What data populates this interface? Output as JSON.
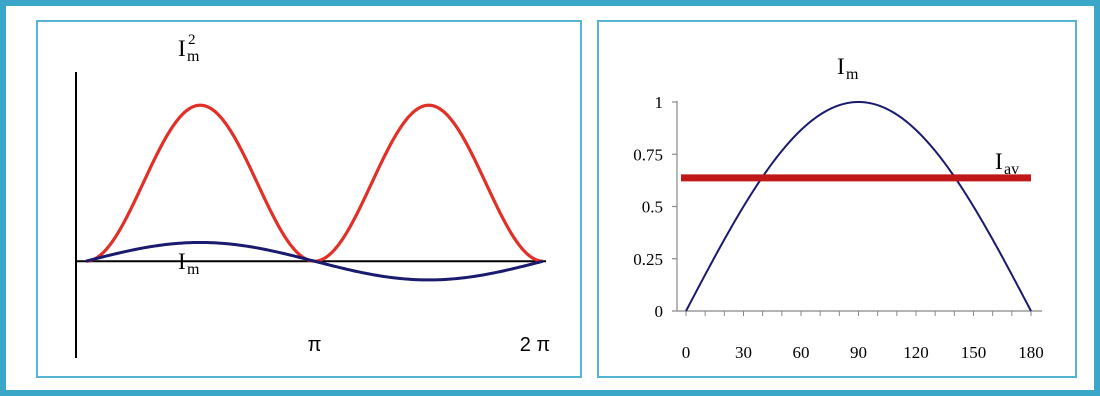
{
  "colors": {
    "frame": "#3aa6c8",
    "panel_border": "#55b3d4",
    "red": "#e03028",
    "dark_red": "#c01818",
    "blue": "#1a1a6e",
    "axis": "#000000"
  },
  "chart_data": [
    {
      "type": "line",
      "x_tick_labels": [
        "π",
        "2 π"
      ],
      "x_ticks": [
        3.14159,
        6.28318
      ],
      "xlim": [
        0,
        6.28318
      ],
      "ylim": [
        -0.3,
        1.2
      ],
      "series": [
        {
          "name": "I_m^2",
          "label_main": "I",
          "label_sub": "m",
          "label_sup": "2",
          "color": "#e03028",
          "function": "sin^2(x)"
        },
        {
          "name": "I_m",
          "label_main": "I",
          "label_sub": "m",
          "color": "#1a1a6e",
          "function": "0.12*sin(x)"
        }
      ]
    },
    {
      "type": "line",
      "x": [
        0,
        30,
        60,
        90,
        120,
        150,
        180
      ],
      "x_tick_labels": [
        "0",
        "30",
        "60",
        "90",
        "120",
        "150",
        "180"
      ],
      "y_tick_labels": [
        "0",
        "0.25",
        "0.5",
        "0.75",
        "1"
      ],
      "y_ticks": [
        0,
        0.25,
        0.5,
        0.75,
        1
      ],
      "xlim": [
        0,
        180
      ],
      "ylim": [
        0,
        1
      ],
      "series": [
        {
          "name": "I_m",
          "label_main": "I",
          "label_sub": "m",
          "color": "#1a1a6e",
          "values": [
            0,
            0.5,
            0.866,
            1,
            0.866,
            0.5,
            0
          ],
          "function": "sin(x deg)"
        },
        {
          "name": "I_av",
          "label_main": "I",
          "label_sub": "av",
          "color": "#c01818",
          "constant": 0.637
        }
      ]
    }
  ]
}
